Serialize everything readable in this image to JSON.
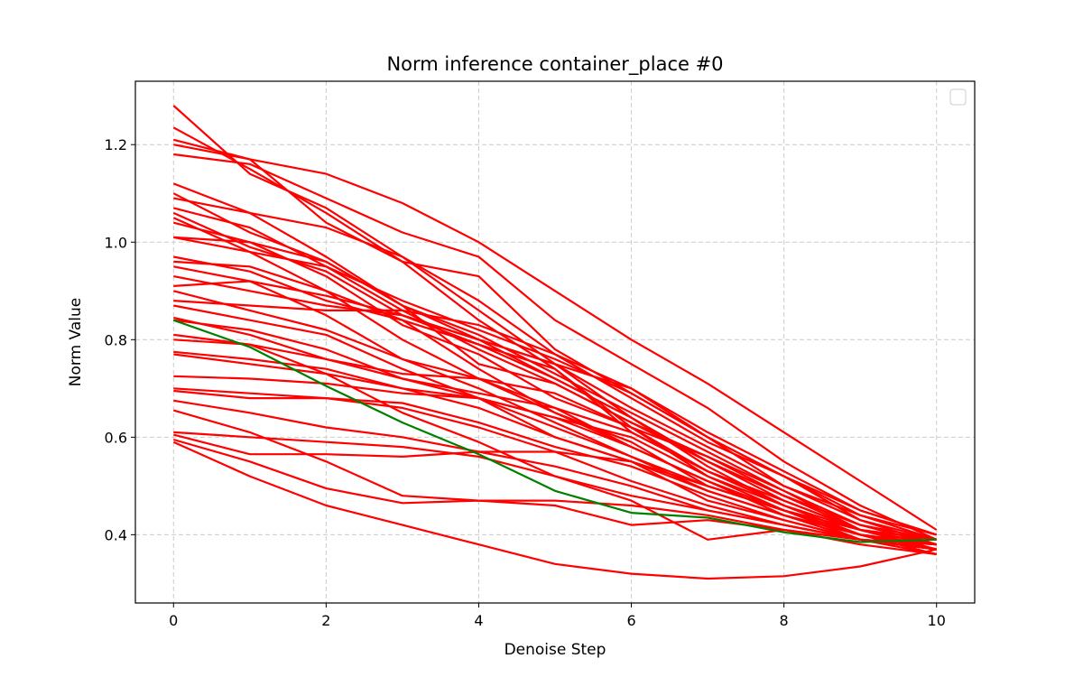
{
  "chart_data": {
    "type": "line",
    "title": "Norm inference container_place #0",
    "xlabel": "Denoise Step",
    "ylabel": "Norm Value",
    "xlim": [
      -0.5,
      10.5
    ],
    "ylim": [
      0.26,
      1.33
    ],
    "xticks": [
      0,
      2,
      4,
      6,
      8,
      10
    ],
    "yticks": [
      0.4,
      0.6,
      0.8,
      1.0,
      1.2
    ],
    "grid": true,
    "legend": "top-right (empty)",
    "x": [
      0,
      1,
      2,
      3,
      4,
      5,
      6,
      7,
      8,
      9,
      10
    ],
    "colors": {
      "series": "#ff0000",
      "highlight": "#008000",
      "grid": "#cccccc"
    },
    "series": [
      {
        "values": [
          1.28,
          1.14,
          1.07,
          0.97,
          0.86,
          0.75,
          0.64,
          0.55,
          0.47,
          0.41,
          0.38
        ]
      },
      {
        "values": [
          1.235,
          1.15,
          1.06,
          0.96,
          0.84,
          0.74,
          0.62,
          0.53,
          0.46,
          0.41,
          0.37
        ]
      },
      {
        "values": [
          1.21,
          1.17,
          1.14,
          1.08,
          1.0,
          0.9,
          0.8,
          0.71,
          0.61,
          0.51,
          0.41
        ]
      },
      {
        "values": [
          1.18,
          1.16,
          1.09,
          1.02,
          0.97,
          0.84,
          0.75,
          0.66,
          0.55,
          0.46,
          0.39
        ]
      },
      {
        "values": [
          1.2,
          1.17,
          1.04,
          0.96,
          0.93,
          0.78,
          0.69,
          0.6,
          0.5,
          0.43,
          0.38
        ]
      },
      {
        "values": [
          1.12,
          1.06,
          1.03,
          0.97,
          0.88,
          0.77,
          0.7,
          0.6,
          0.52,
          0.45,
          0.4
        ]
      },
      {
        "values": [
          1.1,
          1.02,
          0.96,
          0.87,
          0.8,
          0.75,
          0.66,
          0.58,
          0.5,
          0.44,
          0.39
        ]
      },
      {
        "values": [
          1.09,
          1.06,
          0.97,
          0.87,
          0.81,
          0.73,
          0.65,
          0.57,
          0.49,
          0.42,
          0.38
        ]
      },
      {
        "values": [
          1.07,
          1.03,
          0.95,
          0.86,
          0.78,
          0.71,
          0.63,
          0.55,
          0.48,
          0.42,
          0.39
        ]
      },
      {
        "values": [
          1.06,
          0.99,
          0.94,
          0.85,
          0.79,
          0.74,
          0.61,
          0.53,
          0.47,
          0.41,
          0.38
        ]
      },
      {
        "values": [
          1.05,
          0.98,
          0.9,
          0.84,
          0.79,
          0.72,
          0.64,
          0.54,
          0.46,
          0.4,
          0.37
        ]
      },
      {
        "values": [
          1.04,
          1.0,
          0.93,
          0.83,
          0.77,
          0.68,
          0.62,
          0.52,
          0.45,
          0.4,
          0.36
        ]
      },
      {
        "values": [
          1.01,
          1.0,
          0.96,
          0.87,
          0.75,
          0.71,
          0.63,
          0.56,
          0.49,
          0.41,
          0.37
        ]
      },
      {
        "values": [
          0.97,
          0.94,
          0.88,
          0.84,
          0.74,
          0.65,
          0.58,
          0.51,
          0.44,
          0.4,
          0.38
        ]
      },
      {
        "values": [
          0.96,
          0.95,
          0.9,
          0.8,
          0.72,
          0.65,
          0.59,
          0.5,
          0.45,
          0.39,
          0.37
        ]
      },
      {
        "values": [
          0.95,
          0.92,
          0.85,
          0.76,
          0.7,
          0.63,
          0.56,
          0.49,
          0.44,
          0.39,
          0.36
        ]
      },
      {
        "values": [
          0.91,
          0.92,
          0.89,
          0.85,
          0.8,
          0.72,
          0.64,
          0.55,
          0.48,
          0.42,
          0.38
        ]
      },
      {
        "values": [
          0.9,
          0.86,
          0.82,
          0.76,
          0.72,
          0.66,
          0.58,
          0.51,
          0.45,
          0.4,
          0.37
        ]
      },
      {
        "values": [
          0.88,
          0.87,
          0.86,
          0.86,
          0.83,
          0.77,
          0.68,
          0.59,
          0.52,
          0.43,
          0.39
        ]
      },
      {
        "values": [
          0.87,
          0.84,
          0.81,
          0.74,
          0.68,
          0.6,
          0.55,
          0.49,
          0.44,
          0.4,
          0.38
        ]
      },
      {
        "values": [
          0.84,
          0.82,
          0.78,
          0.72,
          0.68,
          0.62,
          0.56,
          0.5,
          0.45,
          0.41,
          0.38
        ]
      },
      {
        "values": [
          0.8,
          0.79,
          0.76,
          0.72,
          0.69,
          0.66,
          0.61,
          0.53,
          0.47,
          0.41,
          0.38
        ]
      },
      {
        "values": [
          0.775,
          0.76,
          0.74,
          0.7,
          0.66,
          0.6,
          0.55,
          0.5,
          0.45,
          0.4,
          0.37
        ]
      },
      {
        "values": [
          0.77,
          0.75,
          0.73,
          0.7,
          0.68,
          0.64,
          0.58,
          0.51,
          0.45,
          0.4,
          0.37
        ]
      },
      {
        "values": [
          0.725,
          0.72,
          0.71,
          0.69,
          0.68,
          0.64,
          0.6,
          0.52,
          0.46,
          0.4,
          0.37
        ]
      },
      {
        "values": [
          0.7,
          0.69,
          0.68,
          0.66,
          0.62,
          0.57,
          0.51,
          0.46,
          0.42,
          0.39,
          0.37
        ]
      },
      {
        "values": [
          0.695,
          0.68,
          0.68,
          0.67,
          0.63,
          0.58,
          0.54,
          0.48,
          0.43,
          0.39,
          0.37
        ]
      },
      {
        "values": [
          0.675,
          0.65,
          0.62,
          0.6,
          0.57,
          0.54,
          0.5,
          0.45,
          0.42,
          0.39,
          0.37
        ]
      },
      {
        "values": [
          0.655,
          0.61,
          0.55,
          0.48,
          0.47,
          0.47,
          0.46,
          0.44,
          0.41,
          0.38,
          0.36
        ]
      },
      {
        "values": [
          0.61,
          0.6,
          0.59,
          0.58,
          0.56,
          0.52,
          0.48,
          0.45,
          0.42,
          0.39,
          0.37
        ]
      },
      {
        "values": [
          0.605,
          0.565,
          0.565,
          0.56,
          0.57,
          0.57,
          0.55,
          0.47,
          0.43,
          0.39,
          0.38
        ]
      },
      {
        "values": [
          0.595,
          0.55,
          0.495,
          0.465,
          0.47,
          0.46,
          0.42,
          0.43,
          0.41,
          0.39,
          0.38
        ]
      },
      {
        "values": [
          0.59,
          0.52,
          0.46,
          0.42,
          0.38,
          0.34,
          0.32,
          0.31,
          0.315,
          0.335,
          0.37
        ]
      },
      {
        "values": [
          0.845,
          0.81,
          0.76,
          0.73,
          0.72,
          0.69,
          0.62,
          0.56,
          0.48,
          0.41,
          0.39
        ]
      },
      {
        "values": [
          0.81,
          0.79,
          0.73,
          0.65,
          0.59,
          0.52,
          0.47,
          0.39,
          0.41,
          0.39,
          0.38
        ]
      },
      {
        "values": [
          1.01,
          0.98,
          0.95,
          0.88,
          0.82,
          0.76,
          0.69,
          0.6,
          0.52,
          0.44,
          0.4
        ]
      },
      {
        "values": [
          0.93,
          0.9,
          0.87,
          0.85,
          0.8,
          0.75,
          0.7,
          0.61,
          0.53,
          0.45,
          0.4
        ]
      }
    ],
    "highlight_series": {
      "values": [
        0.84,
        0.785,
        0.705,
        0.63,
        0.565,
        0.49,
        0.445,
        0.435,
        0.405,
        0.385,
        0.39
      ]
    }
  }
}
